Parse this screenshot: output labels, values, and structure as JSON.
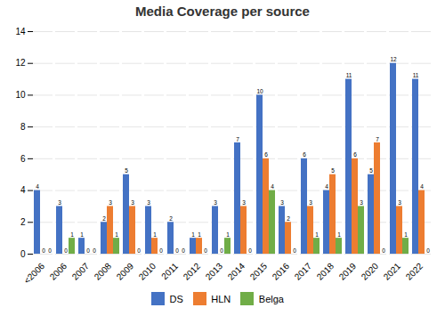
{
  "chart_data": {
    "type": "bar",
    "title": "Media Coverage per source",
    "categories": [
      "<2006",
      "2006",
      "2007",
      "2008",
      "2009",
      "2010",
      "2011",
      "2012",
      "2013",
      "2014",
      "2015",
      "2016",
      "2017",
      "2018",
      "2019",
      "2020",
      "2021",
      "2022"
    ],
    "series": [
      {
        "name": "DS",
        "color": "#4472C4",
        "values": [
          4,
          3,
          1,
          2,
          5,
          3,
          2,
          1,
          3,
          7,
          10,
          3,
          6,
          4,
          11,
          5,
          12,
          11
        ]
      },
      {
        "name": "HLN",
        "color": "#ED7D31",
        "values": [
          0,
          0,
          0,
          3,
          3,
          1,
          0,
          1,
          0,
          3,
          6,
          2,
          3,
          5,
          6,
          7,
          3,
          4
        ]
      },
      {
        "name": "Belga",
        "color": "#70AD47",
        "values": [
          0,
          1,
          0,
          1,
          0,
          0,
          0,
          0,
          1,
          0,
          4,
          0,
          1,
          1,
          3,
          0,
          1,
          0
        ]
      }
    ],
    "ylim": [
      0,
      14
    ],
    "yticks": [
      0,
      2,
      4,
      6,
      8,
      10,
      12,
      14
    ],
    "grid": true,
    "legend": "bottom",
    "data_labels": true
  }
}
